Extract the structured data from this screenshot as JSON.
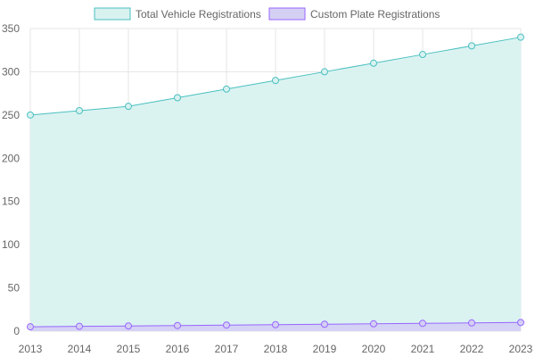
{
  "chart_data": {
    "type": "area",
    "title": "",
    "xlabel": "",
    "ylabel": "",
    "categories": [
      "2013",
      "2014",
      "2015",
      "2016",
      "2017",
      "2018",
      "2019",
      "2020",
      "2021",
      "2022",
      "2023"
    ],
    "ylim": [
      0,
      350
    ],
    "yticks": [
      0,
      50,
      100,
      150,
      200,
      250,
      300,
      350
    ],
    "grid": true,
    "legend_position": "top",
    "series": [
      {
        "name": "Total Vehicle Registrations",
        "values": [
          250,
          255,
          260,
          270,
          280,
          290,
          300,
          310,
          320,
          330,
          340
        ],
        "line_color": "#4bc0c0",
        "fill_color": "#d8f2f0"
      },
      {
        "name": "Custom Plate Registrations",
        "values": [
          5,
          5.5,
          6,
          6.5,
          7,
          7.5,
          8,
          8.5,
          9,
          9.5,
          10
        ],
        "line_color": "#9966ff",
        "fill_color": "#d4d0f4"
      }
    ]
  }
}
